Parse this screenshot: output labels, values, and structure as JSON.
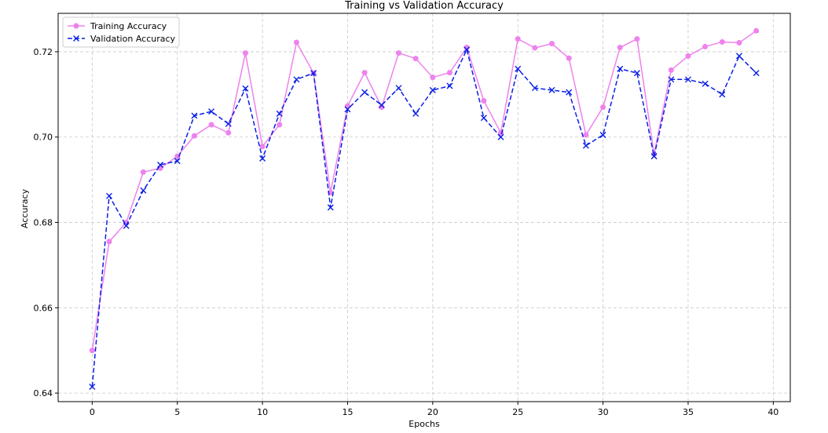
{
  "chart_data": {
    "type": "line",
    "title": "Training vs Validation Accuracy",
    "xlabel": "Epochs",
    "ylabel": "Accuracy",
    "xlim": [
      -2,
      41
    ],
    "ylim": [
      0.638,
      0.729
    ],
    "xticks": [
      0,
      5,
      10,
      15,
      20,
      25,
      30,
      35,
      40
    ],
    "yticks": [
      0.64,
      0.66,
      0.68,
      0.7,
      0.72
    ],
    "ytick_labels": [
      "0.64",
      "0.66",
      "0.68",
      "0.70",
      "0.72"
    ],
    "grid": true,
    "legend_position": "top-left",
    "x": [
      0,
      1,
      2,
      3,
      4,
      5,
      6,
      7,
      8,
      9,
      10,
      11,
      12,
      13,
      14,
      15,
      16,
      17,
      18,
      19,
      20,
      21,
      22,
      23,
      24,
      25,
      26,
      27,
      28,
      29,
      30,
      31,
      32,
      33,
      34,
      35,
      36,
      37,
      38,
      39
    ],
    "series": [
      {
        "name": "Training Accuracy",
        "color": "#ee82ee",
        "marker": "circle",
        "linestyle": "solid",
        "values": [
          0.65,
          0.6755,
          0.68,
          0.6918,
          0.6927,
          0.6955,
          0.7003,
          0.7029,
          0.701,
          0.7197,
          0.6978,
          0.7029,
          0.7222,
          0.715,
          0.687,
          0.7073,
          0.7151,
          0.707,
          0.7197,
          0.7184,
          0.714,
          0.7151,
          0.721,
          0.7085,
          0.701,
          0.723,
          0.7209,
          0.7219,
          0.7185,
          0.7005,
          0.707,
          0.721,
          0.723,
          0.696,
          0.7157,
          0.719,
          0.7212,
          0.7223,
          0.7221,
          0.7249
        ]
      },
      {
        "name": "Validation Accuracy",
        "color": "#0a1fe6",
        "marker": "x",
        "linestyle": "dashed",
        "values": [
          0.6415,
          0.6862,
          0.6792,
          0.6875,
          0.6935,
          0.6944,
          0.705,
          0.706,
          0.7031,
          0.7114,
          0.695,
          0.7055,
          0.7135,
          0.715,
          0.6835,
          0.7065,
          0.7105,
          0.7075,
          0.7115,
          0.7055,
          0.711,
          0.712,
          0.7205,
          0.7045,
          0.7,
          0.716,
          0.7115,
          0.711,
          0.7105,
          0.698,
          0.7005,
          0.716,
          0.715,
          0.6955,
          0.7135,
          0.7135,
          0.7125,
          0.71,
          0.719,
          0.715
        ]
      }
    ]
  }
}
